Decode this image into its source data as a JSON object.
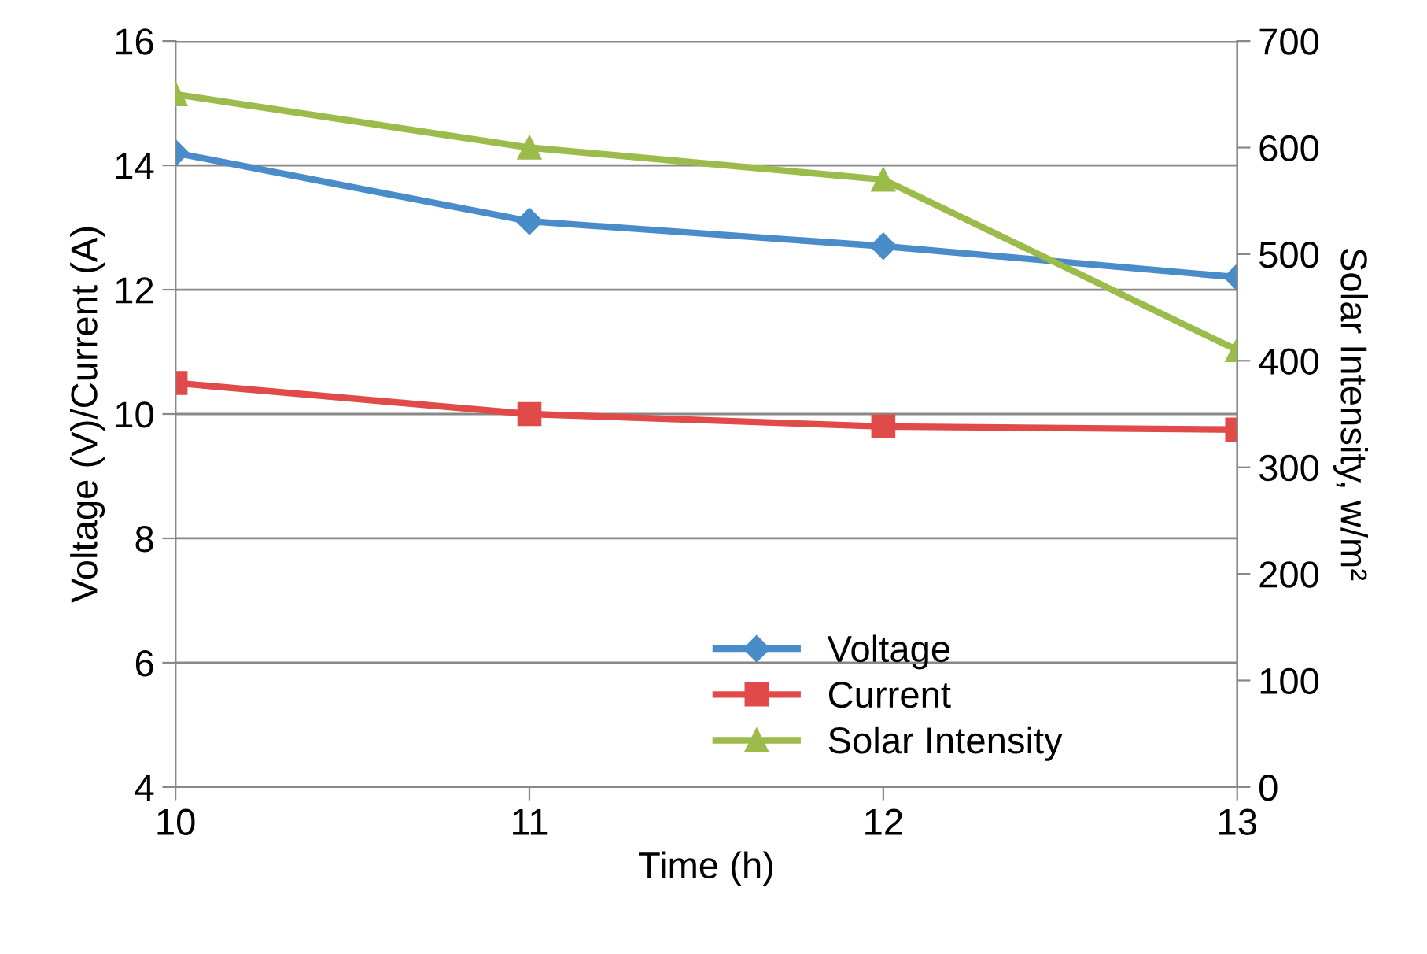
{
  "chart_data": {
    "type": "line",
    "xlabel": "Time (h)",
    "ylabel": "Voltage (V)/Current (A)",
    "y2label": "Solar Intensity, w/m²",
    "x": [
      10,
      11,
      12,
      13
    ],
    "series": [
      {
        "name": "Voltage",
        "color": "#4a8bc9",
        "values": [
          14.2,
          13.1,
          12.7,
          12.2
        ],
        "marker": "diamond"
      },
      {
        "name": "Current",
        "color": "#e04a48",
        "values": [
          10.5,
          10.0,
          9.8,
          9.75
        ],
        "marker": "square"
      },
      {
        "name": "Solar Intensity",
        "color": "#9bbb4a",
        "values": [
          650,
          600,
          570,
          410
        ],
        "marker": "triangle",
        "axis": "y2"
      }
    ],
    "xlim": [
      10,
      13
    ],
    "xticks": [
      10,
      11,
      12,
      13
    ],
    "ylim": [
      4,
      16
    ],
    "yticks": [
      4,
      6,
      8,
      10,
      12,
      14,
      16
    ],
    "y2lim": [
      0,
      700
    ],
    "y2ticks": [
      0,
      100,
      200,
      300,
      400,
      500,
      600,
      700
    ],
    "grid": "y",
    "legend": "bottom right",
    "line_style": "solid"
  }
}
